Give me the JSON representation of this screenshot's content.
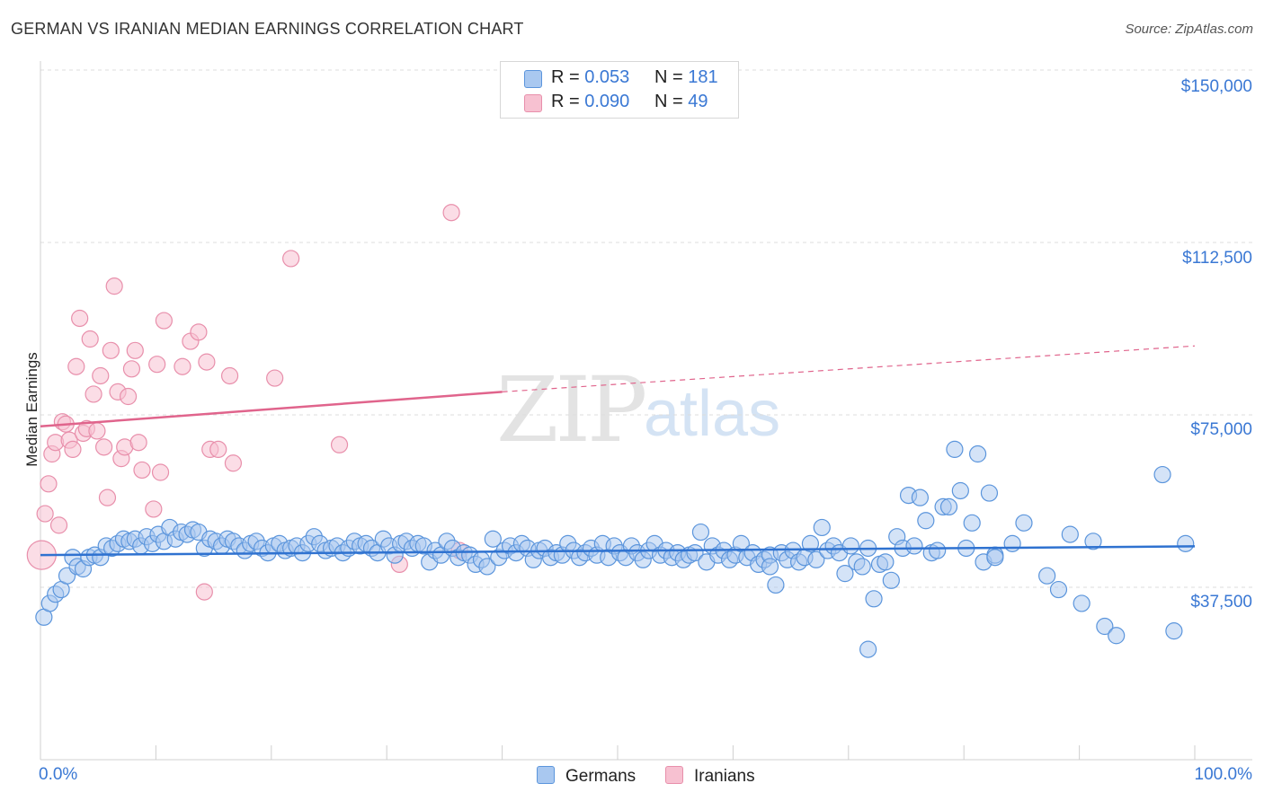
{
  "header": {
    "title": "GERMAN VS IRANIAN MEDIAN EARNINGS CORRELATION CHART",
    "source": "Source: ZipAtlas.com"
  },
  "watermark": {
    "zip": "ZIP",
    "atlas": "atlas"
  },
  "legend": {
    "germans": {
      "r_label": "R =",
      "r_value": "0.053",
      "n_label": "N =",
      "n_value": "181"
    },
    "iranians": {
      "r_label": "R =",
      "r_value": "0.090",
      "n_label": "N =",
      "n_value": "49"
    }
  },
  "bottom_legend": {
    "germans": "Germans",
    "iranians": "Iranians"
  },
  "colors": {
    "germans_fill": "#a9c8f0",
    "germans_stroke": "#5b95dc",
    "germans_line": "#2f72d0",
    "iranians_fill": "#f7c1d1",
    "iranians_stroke": "#e88fab",
    "iranians_line": "#e0648c",
    "tick_text": "#3a78d4"
  },
  "chart_data": {
    "type": "scatter",
    "title": "GERMAN VS IRANIAN MEDIAN EARNINGS CORRELATION CHART",
    "xlabel": "",
    "ylabel": "Median Earnings",
    "xlim": [
      0,
      100
    ],
    "ylim": [
      0,
      150000
    ],
    "x_tick_labels": [
      "0.0%",
      "100.0%"
    ],
    "y_ticks": [
      37500,
      75000,
      112500,
      150000
    ],
    "y_tick_labels": [
      "$37,500",
      "$75,000",
      "$112,500",
      "$150,000"
    ],
    "grid": true,
    "series": [
      {
        "name": "Germans",
        "trend": {
          "x": [
            0,
            100
          ],
          "y": [
            44500,
            46400
          ]
        },
        "points": [
          [
            0.3,
            31000
          ],
          [
            0.8,
            34000
          ],
          [
            1.3,
            36000
          ],
          [
            1.8,
            37000
          ],
          [
            2.3,
            40000
          ],
          [
            2.8,
            44000
          ],
          [
            3.2,
            42000
          ],
          [
            3.7,
            41500
          ],
          [
            4.2,
            44000
          ],
          [
            4.7,
            44500
          ],
          [
            5.2,
            44000
          ],
          [
            5.7,
            46500
          ],
          [
            6.2,
            46000
          ],
          [
            6.7,
            47000
          ],
          [
            7.2,
            48000
          ],
          [
            7.7,
            47500
          ],
          [
            8.2,
            48000
          ],
          [
            8.7,
            46500
          ],
          [
            9.2,
            48500
          ],
          [
            9.7,
            47000
          ],
          [
            10.2,
            49000
          ],
          [
            10.7,
            47500
          ],
          [
            11.2,
            50500
          ],
          [
            11.7,
            48000
          ],
          [
            12.2,
            49500
          ],
          [
            12.7,
            49000
          ],
          [
            13.2,
            50000
          ],
          [
            13.7,
            49500
          ],
          [
            14.2,
            46000
          ],
          [
            14.7,
            48000
          ],
          [
            15.2,
            47500
          ],
          [
            15.7,
            46500
          ],
          [
            16.2,
            48000
          ],
          [
            16.7,
            47500
          ],
          [
            17.2,
            46500
          ],
          [
            17.7,
            45500
          ],
          [
            18.2,
            47000
          ],
          [
            18.7,
            47500
          ],
          [
            19.2,
            46000
          ],
          [
            19.7,
            45000
          ],
          [
            20.2,
            46500
          ],
          [
            20.7,
            47000
          ],
          [
            21.2,
            45500
          ],
          [
            21.7,
            46000
          ],
          [
            22.2,
            46500
          ],
          [
            22.7,
            45000
          ],
          [
            23.2,
            47000
          ],
          [
            23.7,
            48500
          ],
          [
            24.2,
            47000
          ],
          [
            24.7,
            45500
          ],
          [
            25.2,
            46000
          ],
          [
            25.7,
            46500
          ],
          [
            26.2,
            45000
          ],
          [
            26.7,
            46000
          ],
          [
            27.2,
            47500
          ],
          [
            27.7,
            46500
          ],
          [
            28.2,
            47000
          ],
          [
            28.7,
            46000
          ],
          [
            29.2,
            45000
          ],
          [
            29.7,
            48000
          ],
          [
            30.2,
            46500
          ],
          [
            30.7,
            44500
          ],
          [
            31.2,
            47000
          ],
          [
            31.7,
            47500
          ],
          [
            32.2,
            46000
          ],
          [
            32.7,
            47000
          ],
          [
            33.2,
            46500
          ],
          [
            33.7,
            43000
          ],
          [
            34.2,
            45500
          ],
          [
            34.7,
            44500
          ],
          [
            35.2,
            47500
          ],
          [
            35.7,
            46000
          ],
          [
            36.2,
            44000
          ],
          [
            36.7,
            45000
          ],
          [
            37.2,
            44500
          ],
          [
            37.7,
            42500
          ],
          [
            38.2,
            43500
          ],
          [
            38.7,
            42000
          ],
          [
            39.2,
            48000
          ],
          [
            39.7,
            44000
          ],
          [
            40.2,
            45500
          ],
          [
            40.7,
            46500
          ],
          [
            41.2,
            45000
          ],
          [
            41.7,
            47000
          ],
          [
            42.2,
            46000
          ],
          [
            42.7,
            43500
          ],
          [
            43.2,
            45500
          ],
          [
            43.7,
            46000
          ],
          [
            44.2,
            44000
          ],
          [
            44.7,
            45000
          ],
          [
            45.2,
            44500
          ],
          [
            45.7,
            47000
          ],
          [
            46.2,
            45500
          ],
          [
            46.7,
            44000
          ],
          [
            47.2,
            45000
          ],
          [
            47.7,
            46000
          ],
          [
            48.2,
            44500
          ],
          [
            48.7,
            47000
          ],
          [
            49.2,
            44000
          ],
          [
            49.7,
            46500
          ],
          [
            50.2,
            45000
          ],
          [
            50.7,
            44000
          ],
          [
            51.2,
            46500
          ],
          [
            51.7,
            45000
          ],
          [
            52.2,
            43500
          ],
          [
            52.7,
            45500
          ],
          [
            53.2,
            47000
          ],
          [
            53.7,
            44500
          ],
          [
            54.2,
            45500
          ],
          [
            54.7,
            44000
          ],
          [
            55.2,
            45000
          ],
          [
            55.7,
            43500
          ],
          [
            56.2,
            44500
          ],
          [
            56.7,
            45000
          ],
          [
            57.2,
            49500
          ],
          [
            57.7,
            43000
          ],
          [
            58.2,
            46500
          ],
          [
            58.7,
            44500
          ],
          [
            59.2,
            45500
          ],
          [
            59.7,
            43500
          ],
          [
            60.2,
            44500
          ],
          [
            60.7,
            47000
          ],
          [
            61.2,
            44000
          ],
          [
            61.7,
            45000
          ],
          [
            62.2,
            42500
          ],
          [
            62.7,
            43500
          ],
          [
            63.2,
            44500
          ],
          [
            63.7,
            38000
          ],
          [
            64.2,
            45000
          ],
          [
            64.7,
            43500
          ],
          [
            65.2,
            45500
          ],
          [
            65.7,
            43000
          ],
          [
            66.2,
            44000
          ],
          [
            66.7,
            47000
          ],
          [
            67.2,
            43500
          ],
          [
            67.7,
            50500
          ],
          [
            68.2,
            45500
          ],
          [
            68.7,
            46500
          ],
          [
            69.2,
            45000
          ],
          [
            69.7,
            40500
          ],
          [
            70.2,
            46500
          ],
          [
            70.7,
            43000
          ],
          [
            71.2,
            42000
          ],
          [
            71.7,
            46000
          ],
          [
            72.2,
            35000
          ],
          [
            72.7,
            42500
          ],
          [
            73.2,
            43000
          ],
          [
            73.7,
            39000
          ],
          [
            74.2,
            48500
          ],
          [
            74.7,
            46000
          ],
          [
            75.2,
            57500
          ],
          [
            75.7,
            46500
          ],
          [
            76.2,
            57000
          ],
          [
            76.7,
            52000
          ],
          [
            77.2,
            45000
          ],
          [
            77.7,
            45500
          ],
          [
            78.2,
            55000
          ],
          [
            78.7,
            55000
          ],
          [
            79.2,
            67500
          ],
          [
            79.7,
            58500
          ],
          [
            80.2,
            46000
          ],
          [
            80.7,
            51500
          ],
          [
            81.2,
            66500
          ],
          [
            81.7,
            43000
          ],
          [
            82.2,
            58000
          ],
          [
            82.7,
            44500
          ],
          [
            84.2,
            47000
          ],
          [
            85.2,
            51500
          ],
          [
            87.2,
            40000
          ],
          [
            88.2,
            37000
          ],
          [
            89.2,
            49000
          ],
          [
            90.2,
            34000
          ],
          [
            91.2,
            47500
          ],
          [
            92.2,
            29000
          ],
          [
            93.2,
            27000
          ],
          [
            97.2,
            62000
          ],
          [
            98.2,
            28000
          ],
          [
            99.2,
            47000
          ],
          [
            82.7,
            44000
          ],
          [
            63.2,
            42000
          ],
          [
            71.7,
            24000
          ]
        ]
      },
      {
        "name": "Iranians",
        "trend": {
          "x": [
            0,
            40,
            100
          ],
          "y": [
            72500,
            80000,
            90000
          ]
        },
        "trend_solid_until": 40,
        "points": [
          [
            0.1,
            44500
          ],
          [
            0.4,
            53500
          ],
          [
            0.7,
            60000
          ],
          [
            1.0,
            66500
          ],
          [
            1.3,
            69000
          ],
          [
            1.6,
            51000
          ],
          [
            1.9,
            73500
          ],
          [
            2.2,
            73000
          ],
          [
            2.5,
            69500
          ],
          [
            2.8,
            67500
          ],
          [
            3.1,
            85500
          ],
          [
            3.4,
            96000
          ],
          [
            3.7,
            71000
          ],
          [
            4.0,
            72000
          ],
          [
            4.3,
            91500
          ],
          [
            4.6,
            79500
          ],
          [
            4.9,
            71500
          ],
          [
            5.2,
            83500
          ],
          [
            5.5,
            68000
          ],
          [
            5.8,
            57000
          ],
          [
            6.1,
            89000
          ],
          [
            6.4,
            103000
          ],
          [
            6.7,
            80000
          ],
          [
            7.0,
            65500
          ],
          [
            7.3,
            68000
          ],
          [
            7.6,
            79000
          ],
          [
            7.9,
            85000
          ],
          [
            8.2,
            89000
          ],
          [
            8.5,
            69000
          ],
          [
            8.8,
            63000
          ],
          [
            9.8,
            54500
          ],
          [
            10.1,
            86000
          ],
          [
            10.4,
            62500
          ],
          [
            10.7,
            95500
          ],
          [
            12.3,
            85500
          ],
          [
            13.0,
            91000
          ],
          [
            13.7,
            93000
          ],
          [
            14.2,
            36500
          ],
          [
            14.4,
            86500
          ],
          [
            14.7,
            67500
          ],
          [
            15.4,
            67500
          ],
          [
            16.4,
            83500
          ],
          [
            16.7,
            64500
          ],
          [
            20.3,
            83000
          ],
          [
            21.7,
            109000
          ],
          [
            25.9,
            68500
          ],
          [
            31.1,
            42500
          ],
          [
            35.6,
            119000
          ],
          [
            36.3,
            45500
          ]
        ]
      }
    ]
  }
}
